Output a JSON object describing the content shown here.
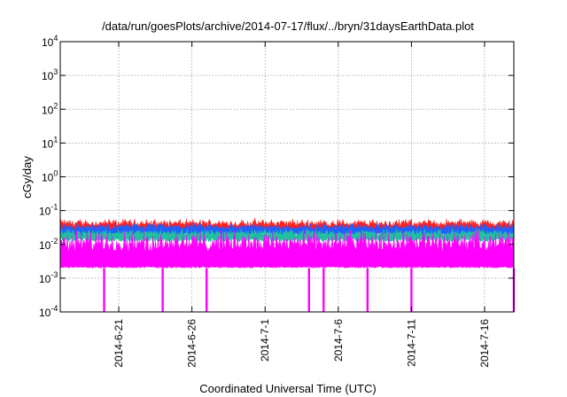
{
  "chart_data": {
    "type": "line",
    "title": "/data/run/goesPlots/archive/2014-07-17/flux/../bryn/31daysEarthData.plot",
    "xlabel": "Coordinated Universal Time (UTC)",
    "ylabel": "cGy/day",
    "yscale": "log",
    "ylim": [
      0.0001,
      10000
    ],
    "xlim": [
      "2014-06-17",
      "2014-07-18"
    ],
    "y_ticks": [
      {
        "base": "10",
        "exp": "-4",
        "value": 0.0001
      },
      {
        "base": "10",
        "exp": "-3",
        "value": 0.001
      },
      {
        "base": "10",
        "exp": "-2",
        "value": 0.01
      },
      {
        "base": "10",
        "exp": "-1",
        "value": 0.1
      },
      {
        "base": "10",
        "exp": "0",
        "value": 1
      },
      {
        "base": "10",
        "exp": "1",
        "value": 10
      },
      {
        "base": "10",
        "exp": "2",
        "value": 100
      },
      {
        "base": "10",
        "exp": "3",
        "value": 1000
      },
      {
        "base": "10",
        "exp": "4",
        "value": 10000
      }
    ],
    "x_ticks": [
      "2014-6-21",
      "2014-6-26",
      "2014-7-1",
      "2014-7-6",
      "2014-7-11",
      "2014-7-16"
    ],
    "grid": true,
    "series": [
      {
        "color": "#ff2020",
        "typical": 0.033,
        "peak": 0.06
      },
      {
        "color": "#2060ff",
        "typical": 0.026,
        "peak": 0.045
      },
      {
        "color": "#20c0a0",
        "typical": 0.018,
        "peak": 0.03
      },
      {
        "color": "#ff00ff",
        "typical": 0.006,
        "min": 0.002,
        "peak": 0.03
      }
    ],
    "dropouts": [
      "2014-06-20",
      "2014-06-24",
      "2014-06-27",
      "2014-07-04",
      "2014-07-05",
      "2014-07-08",
      "2014-07-11",
      "2014-07-18"
    ]
  }
}
